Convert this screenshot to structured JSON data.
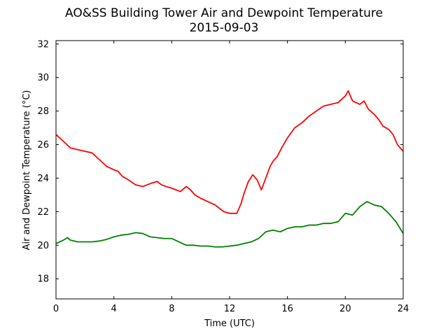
{
  "chart_data": {
    "type": "line",
    "title": "AO&SS Building Tower Air and Dewpoint Temperature",
    "subtitle": "2015-09-03",
    "xlabel": "Time (UTC)",
    "ylabel": "Air and Dewpoint Temperature (°C)",
    "xlim": [
      0,
      24
    ],
    "ylim": [
      16.8,
      32.2
    ],
    "xticks": [
      0,
      4,
      8,
      12,
      16,
      20,
      24
    ],
    "xtick_labels": [
      "0",
      "4",
      "8",
      "12",
      "16",
      "20",
      "24"
    ],
    "yticks": [
      18,
      20,
      22,
      24,
      26,
      28,
      30,
      32
    ],
    "ytick_labels": [
      "18",
      "20",
      "22",
      "24",
      "26",
      "28",
      "30",
      "32"
    ],
    "grid": false,
    "legend": "none",
    "series": [
      {
        "color": "#ff0000",
        "x": [
          0,
          0.5,
          1,
          1.5,
          2,
          2.5,
          3,
          3.5,
          4,
          4.3,
          4.6,
          5,
          5.5,
          6,
          6.3,
          6.6,
          7,
          7.3,
          7.6,
          8,
          8.3,
          8.6,
          9,
          9.3,
          9.6,
          10,
          10.5,
          11,
          11.3,
          11.6,
          12,
          12.5,
          12.8,
          13,
          13.3,
          13.6,
          13.9,
          14.2,
          14.5,
          14.8,
          15,
          15.3,
          15.6,
          16,
          16.5,
          17,
          17.5,
          18,
          18.5,
          19,
          19.5,
          20,
          20.2,
          20.5,
          21,
          21.3,
          21.6,
          22,
          22.3,
          22.6,
          23,
          23.3,
          23.6,
          24
        ],
        "y": [
          26.6,
          26.2,
          25.8,
          25.7,
          25.6,
          25.5,
          25.1,
          24.7,
          24.5,
          24.4,
          24.1,
          23.9,
          23.6,
          23.5,
          23.6,
          23.7,
          23.8,
          23.6,
          23.5,
          23.4,
          23.3,
          23.2,
          23.5,
          23.3,
          23.0,
          22.8,
          22.6,
          22.4,
          22.2,
          22.0,
          21.9,
          21.9,
          22.5,
          23.1,
          23.8,
          24.2,
          23.9,
          23.3,
          24.0,
          24.7,
          25.0,
          25.3,
          25.8,
          26.4,
          27.0,
          27.3,
          27.7,
          28.0,
          28.3,
          28.4,
          28.5,
          28.9,
          29.2,
          28.6,
          28.4,
          28.6,
          28.1,
          27.8,
          27.5,
          27.1,
          26.9,
          26.6,
          26.0,
          25.6
        ]
      },
      {
        "color": "#008000",
        "x": [
          0,
          0.5,
          0.8,
          1,
          1.5,
          2,
          2.5,
          3,
          3.5,
          4,
          4.5,
          5,
          5.5,
          6,
          6.5,
          7,
          7.5,
          8,
          8.5,
          9,
          9.5,
          10,
          10.5,
          11,
          11.5,
          12,
          12.5,
          13,
          13.5,
          14,
          14.5,
          15,
          15.5,
          16,
          16.5,
          17,
          17.5,
          18,
          18.5,
          19,
          19.5,
          20,
          20.5,
          21,
          21.5,
          22,
          22.5,
          23,
          23.5,
          24
        ],
        "y": [
          20.1,
          20.3,
          20.45,
          20.3,
          20.2,
          20.2,
          20.2,
          20.25,
          20.35,
          20.5,
          20.6,
          20.65,
          20.75,
          20.7,
          20.5,
          20.45,
          20.4,
          20.4,
          20.2,
          20.0,
          20.0,
          19.95,
          19.95,
          19.9,
          19.9,
          19.95,
          20.0,
          20.1,
          20.2,
          20.4,
          20.8,
          20.9,
          20.8,
          21.0,
          21.1,
          21.1,
          21.2,
          21.2,
          21.3,
          21.3,
          21.4,
          21.9,
          21.8,
          22.3,
          22.6,
          22.4,
          22.3,
          21.9,
          21.4,
          20.7
        ]
      }
    ]
  }
}
